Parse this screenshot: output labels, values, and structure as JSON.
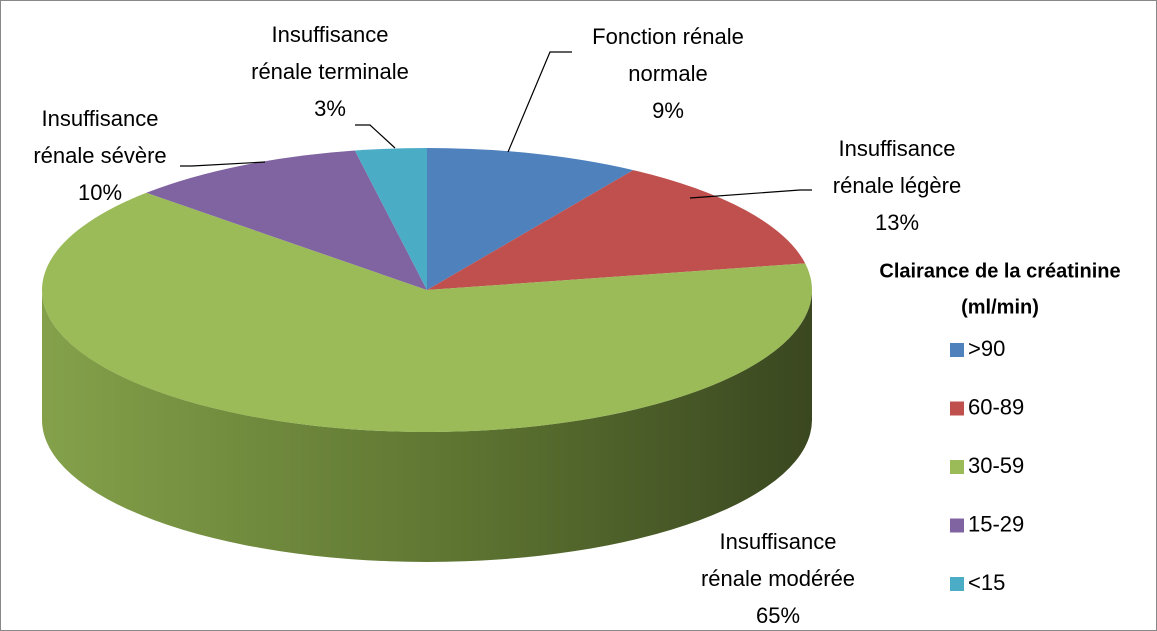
{
  "chart_data": {
    "type": "pie3d",
    "legend_title": [
      "Clairance de la créatinine",
      "(ml/min)"
    ],
    "categories": [
      ">90",
      "60-89",
      "30-59",
      "15-29",
      "<15"
    ],
    "slice_labels": [
      [
        "Fonction rénale",
        "normale"
      ],
      [
        "Insuffisance",
        "rénale légère"
      ],
      [
        "Insuffisance",
        "rénale modérée"
      ],
      [
        "Insuffisance",
        "rénale sévère"
      ],
      [
        "Insuffisance",
        "rénale terminale"
      ]
    ],
    "values": [
      9,
      13,
      65,
      10,
      3
    ],
    "value_labels": [
      "9%",
      "13%",
      "65%",
      "10%",
      "3%"
    ],
    "colors": [
      "#4f81bd",
      "#c0504d",
      "#9bbb59",
      "#8064a2",
      "#4bacc6"
    ],
    "side_colors": [
      "#3c6394",
      "#943c3a",
      "#6f8a3c",
      "#614b7d",
      "#36879b"
    ],
    "legend_position": "right"
  }
}
